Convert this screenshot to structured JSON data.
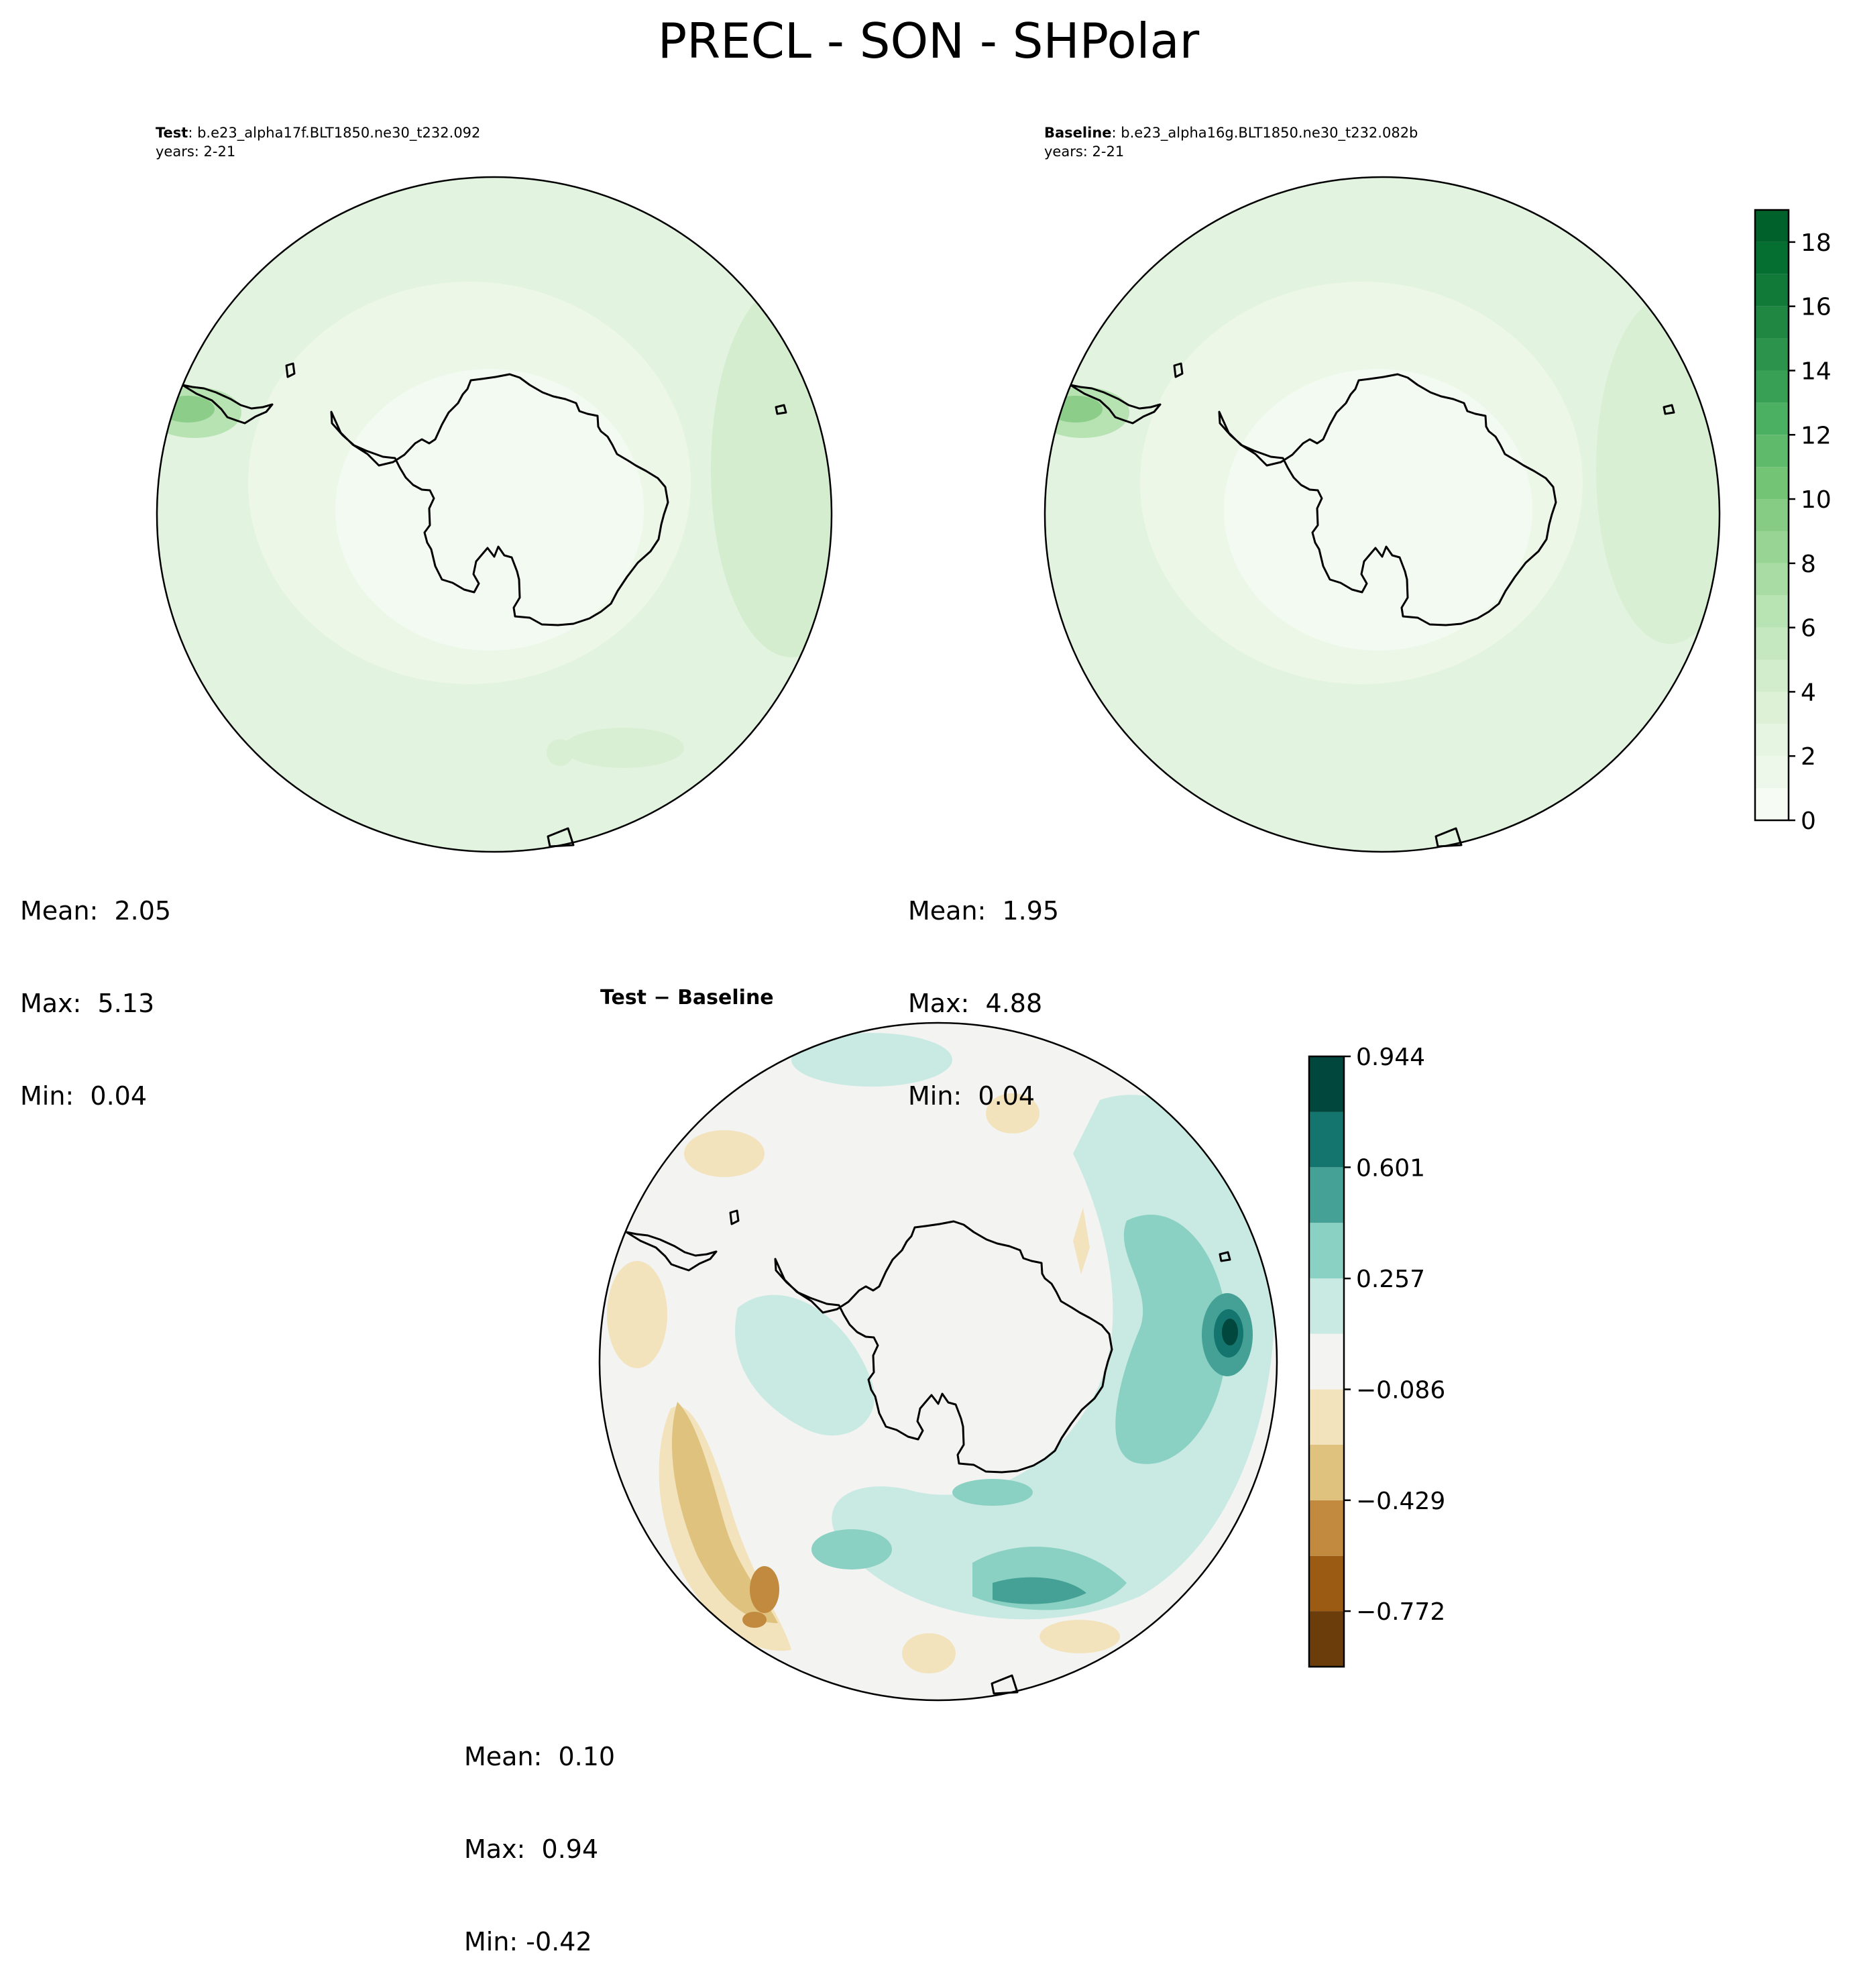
{
  "figure": {
    "title": "PRECL - SON - SHPolar"
  },
  "panels": {
    "test": {
      "label_bold": "Test",
      "label_sep": ": ",
      "case_name": "b.e23_alpha17f.BLT1850.ne30_t232.092",
      "years_line": "years: 2-21",
      "stats": {
        "mean": "Mean:  2.05",
        "max": "Max:  5.13",
        "min": "Min:  0.04"
      }
    },
    "baseline": {
      "label_bold": "Baseline",
      "label_sep": ": ",
      "case_name": "b.e23_alpha16g.BLT1850.ne30_t232.082b",
      "years_line": "years: 2-21",
      "stats": {
        "mean": "Mean:  1.95",
        "max": "Max:  4.88",
        "min": "Min:  0.04"
      }
    },
    "difference": {
      "title_a": "Test",
      "title_op": " − ",
      "title_b": "Baseline",
      "stats": {
        "mean": "Mean:  0.10",
        "max": "Max:  0.94",
        "min": "Min: -0.42"
      }
    }
  },
  "chart_data": [
    {
      "type": "heatmap",
      "projection": "south-polar-stereographic",
      "title": "Test: b.e23_alpha17f.BLT1850.ne30_t232.092",
      "variable": "PRECL",
      "season": "SON",
      "mean": 2.05,
      "max": 5.13,
      "min": 0.04,
      "colormap": "Greens"
    },
    {
      "type": "heatmap",
      "projection": "south-polar-stereographic",
      "title": "Baseline: b.e23_alpha16g.BLT1850.ne30_t232.082b",
      "variable": "PRECL",
      "season": "SON",
      "mean": 1.95,
      "max": 4.88,
      "min": 0.04,
      "colormap": "Greens"
    },
    {
      "type": "heatmap",
      "projection": "south-polar-stereographic",
      "title": "Test − Baseline",
      "variable": "PRECL",
      "season": "SON",
      "mean": 0.1,
      "max": 0.94,
      "min": -0.42,
      "colormap": "BrBG"
    }
  ],
  "colorbars": {
    "abs": {
      "vmin": 0,
      "vmax": 19,
      "step": 1,
      "ticks": [
        0,
        2,
        4,
        6,
        8,
        10,
        12,
        14,
        16,
        18
      ],
      "tick_labels": [
        "0",
        "2",
        "4",
        "6",
        "8",
        "10",
        "12",
        "14",
        "16",
        "18"
      ],
      "colors": [
        "#f6fbf4",
        "#eef8ea",
        "#e6f5e1",
        "#dcf1d6",
        "#d2edcc",
        "#c5e8c0",
        "#b8e3b2",
        "#a9dca4",
        "#98d594",
        "#86cc85",
        "#74c476",
        "#60ba6c",
        "#4bb062",
        "#38a055",
        "#2c934c",
        "#1f8742",
        "#117a39",
        "#056f32",
        "#00612a"
      ],
      "edge_color": "#00441b"
    },
    "diff": {
      "levels": [
        -0.944,
        -0.772,
        -0.601,
        -0.429,
        -0.257,
        -0.086,
        0.086,
        0.257,
        0.429,
        0.601,
        0.772,
        0.944
      ],
      "tick_values": [
        -0.772,
        -0.429,
        -0.086,
        0.257,
        0.601,
        0.944
      ],
      "tick_labels": [
        "−0.772",
        "−0.429",
        "−0.086",
        "0.257",
        "0.601",
        "0.944"
      ],
      "colors": [
        "#6b3d0a",
        "#9c5b13",
        "#c18a3e",
        "#dfc27d",
        "#f3e3bd",
        "#f3f3f2",
        "#c9eae3",
        "#8ad0c3",
        "#45a196",
        "#13756e",
        "#01473d"
      ]
    }
  }
}
